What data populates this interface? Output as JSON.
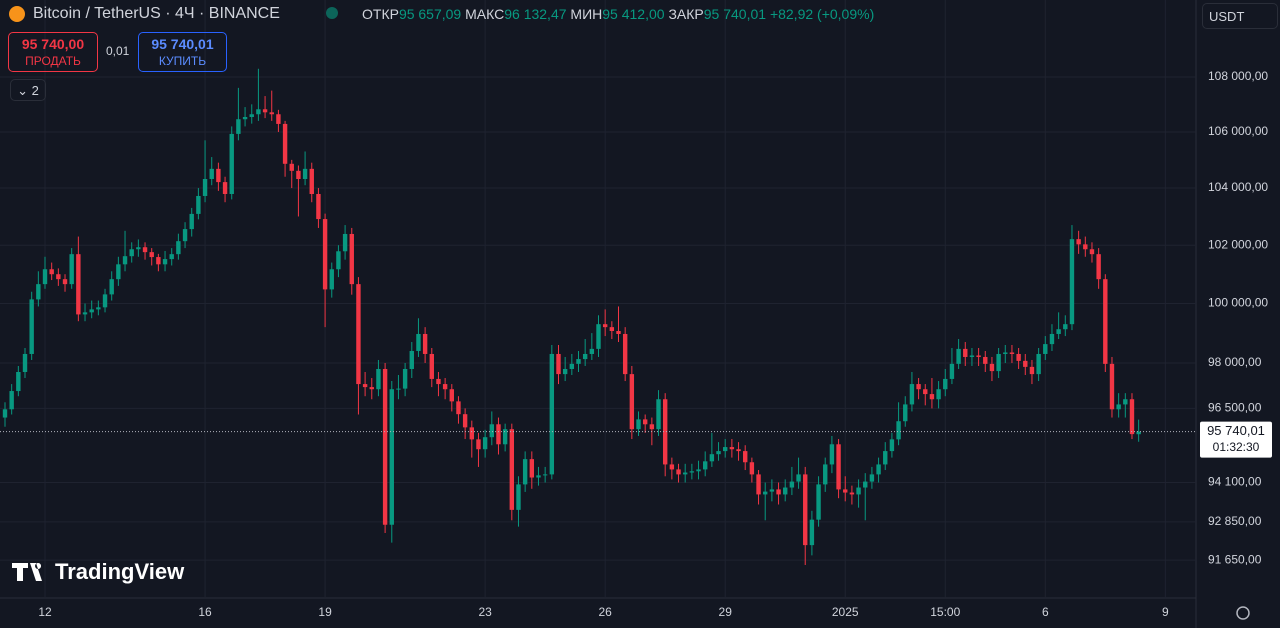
{
  "header": {
    "symbol": "Bitcoin / TetherUS · 4Ч · BINANCE",
    "open_label": "ОТКР",
    "open": "95 657,09",
    "high_label": "МАКС",
    "high": "96 132,47",
    "low_label": "МИН",
    "low": "95 412,00",
    "close_label": "ЗАКР",
    "close": "95 740,01",
    "change": "+82,92 (+0,09%)",
    "currency": "USDT"
  },
  "trade": {
    "sell_price": "95 740,00",
    "sell_label": "ПРОДАТЬ",
    "spread": "0,01",
    "buy_price": "95 740,01",
    "buy_label": "КУПИТЬ",
    "indicators": "2"
  },
  "brand": "TradingView",
  "price_badge": {
    "price": "95 740,01",
    "timer": "01:32:30"
  },
  "chart_data": {
    "type": "candlestick",
    "log": true,
    "grid": true,
    "up_color": "#089981",
    "down_color": "#f23645",
    "ylim": [
      90480,
      110860
    ],
    "yticks": [
      {
        "value": 108000,
        "label": "108 000,00"
      },
      {
        "value": 106000,
        "label": "106 000,00"
      },
      {
        "value": 104000,
        "label": "104 000,00"
      },
      {
        "value": 102000,
        "label": "102 000,00"
      },
      {
        "value": 100000,
        "label": "100 000,00"
      },
      {
        "value": 98000,
        "label": "98 000,00"
      },
      {
        "value": 96500,
        "label": "96 500,00"
      },
      {
        "value": 94100,
        "label": "94 100,00"
      },
      {
        "value": 92850,
        "label": "92 850,00"
      },
      {
        "value": 91650,
        "label": "91 650,00"
      }
    ],
    "xlim": [
      -0.75,
      178.6
    ],
    "xticks": [
      {
        "value": 6,
        "label": "12"
      },
      {
        "value": 30,
        "label": "16"
      },
      {
        "value": 48,
        "label": "19"
      },
      {
        "value": 72,
        "label": "23"
      },
      {
        "value": 90,
        "label": "26"
      },
      {
        "value": 108,
        "label": "29"
      },
      {
        "value": 126,
        "label": "2025"
      },
      {
        "value": 141,
        "label": "15:00"
      },
      {
        "value": 156,
        "label": "6"
      },
      {
        "value": 174,
        "label": "9"
      }
    ],
    "last_price": 95740.01,
    "open": [
      96200,
      96470,
      97070,
      97700,
      98300,
      100140,
      100660,
      101170,
      101000,
      100830,
      100660,
      101690,
      99630,
      99700,
      99800,
      99870,
      100310,
      100830,
      101340,
      101620,
      101860,
      101930,
      101760,
      101590,
      101340,
      101520,
      101690,
      102140,
      102560,
      103090,
      103720,
      104320,
      104680,
      104210,
      103790,
      105930,
      106460,
      106540,
      106640,
      106820,
      106710,
      106640,
      106290,
      104860,
      104610,
      104320,
      104680,
      103790,
      102910,
      100480,
      101170,
      101790,
      102390,
      100660,
      97300,
      97200,
      97130,
      97800,
      92760,
      97130,
      97150,
      97800,
      98400,
      98970,
      98300,
      97470,
      97300,
      97130,
      96730,
      96310,
      95880,
      95490,
      95170,
      95560,
      95980,
      95330,
      95820,
      93230,
      94040,
      94850,
      94260,
      94330,
      94360,
      98300,
      97630,
      97800,
      97970,
      98130,
      98300,
      98470,
      99300,
      99200,
      99070,
      98970,
      97630,
      95820,
      96140,
      95980,
      95820,
      96800,
      94680,
      94520,
      94360,
      94420,
      94460,
      94520,
      94780,
      95010,
      95110,
      95240,
      95170,
      95110,
      94750,
      94360,
      93720,
      93810,
      93880,
      93720,
      93940,
      94130,
      94360,
      92120,
      92920,
      94040,
      94680,
      95330,
      93880,
      93780,
      93720,
      93940,
      94130,
      94360,
      94680,
      95110,
      95490,
      96080,
      96630,
      97300,
      97130,
      96970,
      96800,
      97130,
      97470,
      97970,
      98470,
      98200,
      98250,
      98200,
      97970,
      97730,
      98300,
      98350,
      98300,
      98070,
      97870,
      97630,
      98300,
      98630,
      98970,
      99130,
      99300,
      102210,
      102030,
      101860,
      101690,
      100830,
      97970,
      96470,
      96630,
      96800,
      95657.09
    ],
    "high": [
      96700,
      97300,
      97900,
      98500,
      100400,
      101100,
      101600,
      101400,
      101200,
      101000,
      101900,
      102300,
      100000,
      100100,
      100100,
      100500,
      101100,
      101600,
      102500,
      102100,
      102200,
      102100,
      101900,
      101700,
      101800,
      101900,
      102400,
      102800,
      103300,
      104000,
      105700,
      105100,
      104900,
      104400,
      106200,
      107600,
      106900,
      107000,
      108300,
      107300,
      107500,
      106800,
      106400,
      105000,
      104800,
      105300,
      104900,
      104000,
      103100,
      101400,
      102000,
      102700,
      102600,
      100900,
      97700,
      97500,
      98100,
      98000,
      97400,
      97600,
      98000,
      98700,
      99500,
      99200,
      98500,
      97700,
      97500,
      97300,
      96900,
      96500,
      96100,
      95700,
      95800,
      96400,
      96200,
      96000,
      96000,
      94300,
      95100,
      95100,
      94600,
      94600,
      98600,
      98600,
      98200,
      98300,
      98400,
      98800,
      99000,
      99600,
      99800,
      99400,
      99900,
      99200,
      97900,
      96400,
      96300,
      96200,
      97100,
      97000,
      94900,
      94700,
      94700,
      94700,
      94800,
      95100,
      95700,
      95400,
      95500,
      95500,
      95400,
      95300,
      94900,
      94500,
      94100,
      94200,
      94100,
      94200,
      94600,
      94900,
      94600,
      93200,
      94300,
      94900,
      95600,
      95500,
      94300,
      94000,
      94200,
      94400,
      94600,
      94900,
      95400,
      95700,
      96700,
      96900,
      97700,
      97500,
      97300,
      97500,
      97400,
      97800,
      98500,
      98800,
      98700,
      98500,
      98500,
      98400,
      98200,
      98500,
      98600,
      98600,
      98500,
      98300,
      98100,
      98500,
      98900,
      99300,
      99700,
      99600,
      102700,
      102500,
      102300,
      102100,
      101900,
      101000,
      98200,
      97000,
      97000,
      97000,
      96132.47
    ],
    "low": [
      95900,
      96300,
      96900,
      97500,
      98100,
      99900,
      100500,
      100800,
      100600,
      100400,
      100500,
      99400,
      99400,
      99500,
      99600,
      99700,
      100100,
      100600,
      101100,
      101400,
      101600,
      101500,
      101300,
      101100,
      101100,
      101300,
      101500,
      101900,
      102300,
      102900,
      103500,
      104100,
      103900,
      103500,
      103600,
      105700,
      106200,
      106300,
      106400,
      106500,
      106400,
      106000,
      104400,
      104000,
      103000,
      104100,
      103500,
      102600,
      99200,
      100200,
      100900,
      101500,
      100300,
      96300,
      96900,
      96800,
      96900,
      92500,
      92200,
      96800,
      96900,
      97500,
      98200,
      98000,
      97200,
      96900,
      96800,
      96400,
      96000,
      95500,
      94900,
      94600,
      94900,
      95300,
      95000,
      95100,
      92900,
      92700,
      93800,
      93900,
      94000,
      94100,
      94200,
      97300,
      97400,
      97600,
      97700,
      97900,
      98100,
      98200,
      98900,
      98800,
      98700,
      97400,
      95500,
      95600,
      95700,
      95300,
      95600,
      94300,
      94200,
      94100,
      94100,
      94200,
      94200,
      94300,
      94600,
      94800,
      94900,
      94900,
      94800,
      94500,
      94100,
      93400,
      92900,
      93500,
      93400,
      93500,
      93700,
      93900,
      91500,
      91800,
      92700,
      93800,
      94400,
      93600,
      93500,
      93400,
      93300,
      92900,
      93900,
      94100,
      94500,
      94900,
      95300,
      95900,
      96400,
      96800,
      96600,
      96500,
      96500,
      96900,
      97300,
      97800,
      97900,
      97900,
      97900,
      97700,
      97400,
      97500,
      98000,
      98000,
      97800,
      97600,
      97300,
      97400,
      98100,
      98400,
      98800,
      98900,
      99100,
      101700,
      101600,
      101400,
      100500,
      97700,
      96200,
      96200,
      96200,
      95500,
      95412
    ],
    "close": [
      96470,
      97070,
      97700,
      98300,
      100140,
      100660,
      101170,
      101000,
      100830,
      100660,
      101690,
      99630,
      99700,
      99800,
      99870,
      100310,
      100830,
      101340,
      101620,
      101860,
      101930,
      101760,
      101590,
      101340,
      101520,
      101690,
      102140,
      102560,
      103090,
      103720,
      104320,
      104680,
      104210,
      103790,
      105930,
      106460,
      106540,
      106640,
      106820,
      106710,
      106640,
      106290,
      104860,
      104610,
      104320,
      104680,
      103790,
      102910,
      100480,
      101170,
      101790,
      102390,
      100660,
      97300,
      97200,
      97130,
      97800,
      92760,
      97130,
      97150,
      97800,
      98400,
      98970,
      98300,
      97470,
      97300,
      97130,
      96730,
      96310,
      95880,
      95490,
      95170,
      95560,
      95980,
      95330,
      95820,
      93230,
      94040,
      94850,
      94260,
      94330,
      94360,
      98300,
      97630,
      97800,
      97970,
      98130,
      98300,
      98470,
      99300,
      99200,
      99070,
      98970,
      97630,
      95820,
      96140,
      95980,
      95820,
      96800,
      94680,
      94520,
      94360,
      94420,
      94460,
      94520,
      94780,
      95010,
      95110,
      95240,
      95170,
      95110,
      94750,
      94360,
      93720,
      93810,
      93880,
      93720,
      93940,
      94130,
      94360,
      92120,
      92920,
      94040,
      94680,
      95330,
      93880,
      93780,
      93720,
      93940,
      94130,
      94360,
      94680,
      95110,
      95490,
      96080,
      96630,
      97300,
      97130,
      96970,
      96800,
      97130,
      97470,
      97970,
      98470,
      98200,
      98250,
      98200,
      97970,
      97730,
      98300,
      98350,
      98300,
      98070,
      97870,
      97630,
      98300,
      98630,
      98970,
      99130,
      99300,
      102210,
      102030,
      101860,
      101690,
      100830,
      97970,
      96470,
      96630,
      96800,
      95660,
      95740.01
    ]
  }
}
